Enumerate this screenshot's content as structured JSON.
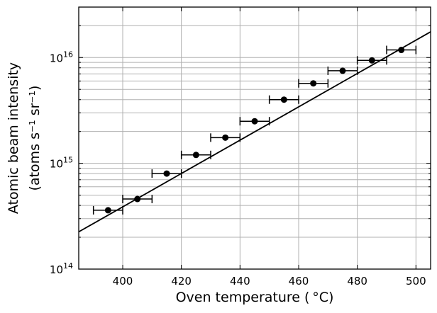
{
  "chart_data": {
    "type": "scatter",
    "xlabel": "Oven temperature ( °C)",
    "ylabel_line1": "Atomic beam intensity",
    "ylabel_line2": "(atoms s⁻¹ sr⁻¹)",
    "xlim": [
      385,
      505
    ],
    "ylim": [
      100000000000000.0,
      3e+16
    ],
    "yscale": "log",
    "grid": true,
    "xticks": [
      400,
      420,
      440,
      460,
      480,
      500
    ],
    "yticks": [
      {
        "value": 100000000000000.0,
        "base": "10",
        "exp": "14"
      },
      {
        "value": 1000000000000000.0,
        "base": "10",
        "exp": "15"
      },
      {
        "value": 1e+16,
        "base": "10",
        "exp": "16"
      }
    ],
    "series": [
      {
        "type": "errorbar",
        "color": "#000000",
        "points": [
          {
            "x": 395,
            "y": 360000000000000.0,
            "xerr": 5
          },
          {
            "x": 405,
            "y": 460000000000000.0,
            "xerr": 5
          },
          {
            "x": 415,
            "y": 800000000000000.0,
            "xerr": 5
          },
          {
            "x": 425,
            "y": 1200000000000000.0,
            "xerr": 5
          },
          {
            "x": 435,
            "y": 1750000000000000.0,
            "xerr": 5
          },
          {
            "x": 445,
            "y": 2500000000000000.0,
            "xerr": 5
          },
          {
            "x": 455,
            "y": 4000000000000000.0,
            "xerr": 5
          },
          {
            "x": 465,
            "y": 5700000000000000.0,
            "xerr": 5
          },
          {
            "x": 475,
            "y": 7500000000000000.0,
            "xerr": 5
          },
          {
            "x": 485,
            "y": 9400000000000000.0,
            "xerr": 5
          },
          {
            "x": 495,
            "y": 1.18e+16,
            "xerr": 5
          }
        ]
      },
      {
        "type": "line",
        "color": "#000000",
        "x": [
          385,
          505
        ],
        "y": [
          225000000000000.0,
          1.75e+16
        ]
      }
    ]
  }
}
